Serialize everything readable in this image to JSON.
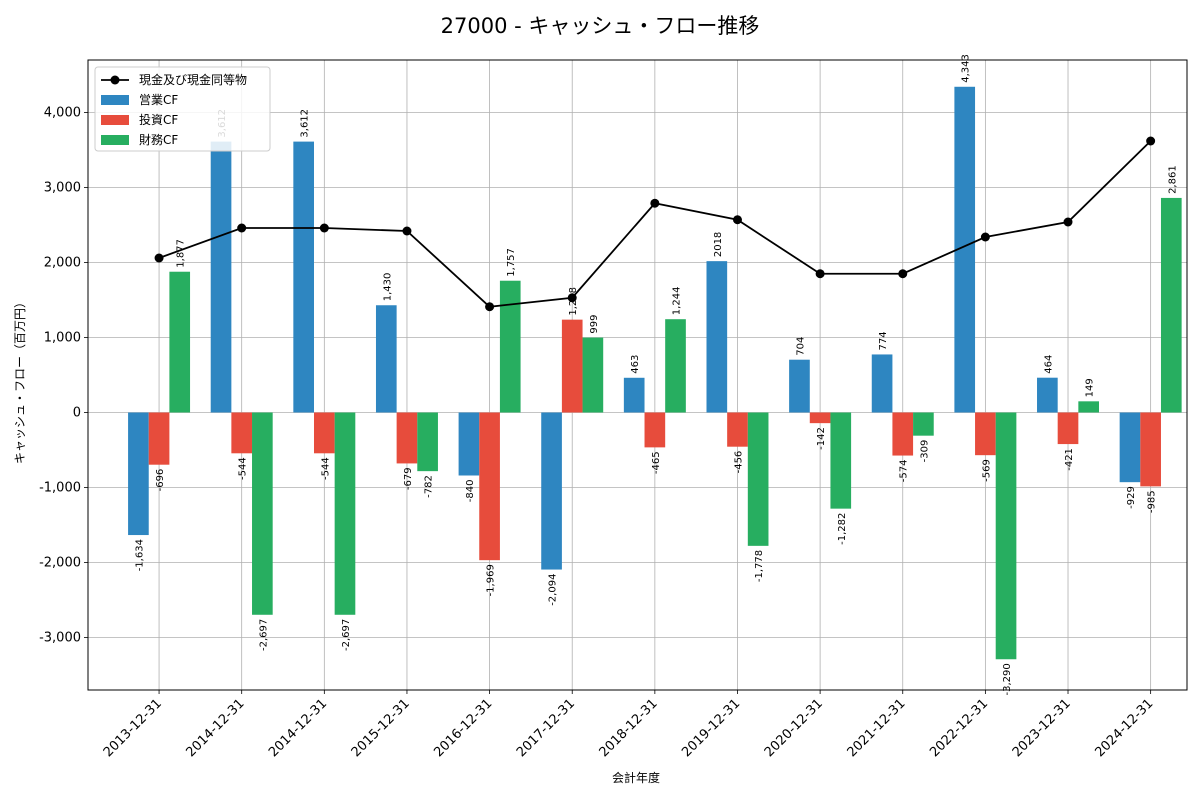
{
  "chart_data": {
    "type": "bar",
    "title": "27000 - キャッシュ・フロー推移",
    "xlabel": "会計年度",
    "ylabel": "キャッシュ・フロー（百万円）",
    "categories": [
      "2013-12-31",
      "2014-12-31",
      "2014-12-31",
      "2015-12-31",
      "2016-12-31",
      "2017-12-31",
      "2018-12-31",
      "2019-12-31",
      "2020-12-31",
      "2021-12-31",
      "2022-12-31",
      "2023-12-31",
      "2024-12-31"
    ],
    "ylim": [
      -3700,
      4700
    ],
    "yticks": [
      -3000,
      -2000,
      -1000,
      0,
      1000,
      2000,
      3000,
      4000
    ],
    "ytick_labels": [
      "-3,000",
      "-2,000",
      "-1,000",
      "0",
      "1,000",
      "2,000",
      "3,000",
      "4,000"
    ],
    "grid": true,
    "legend_position": "top-left",
    "series": [
      {
        "name": "営業CF",
        "type": "bar",
        "color": "#2e86c1",
        "values": [
          -1634,
          3612,
          3612,
          1430,
          -840,
          -2094,
          463,
          2018,
          704,
          774,
          4343,
          464,
          -929
        ],
        "labels": [
          "-1,634",
          "3,612",
          "3,612",
          "1,430",
          "-840",
          "-2,094",
          "463",
          "2018",
          "704",
          "774",
          "4,343",
          "464",
          "-929"
        ]
      },
      {
        "name": "投資CF",
        "type": "bar",
        "color": "#e74c3c",
        "values": [
          -696,
          -544,
          -544,
          -679,
          -1969,
          1238,
          -465,
          -456,
          -142,
          -574,
          -569,
          -421,
          -985
        ],
        "labels": [
          "-696",
          "-544",
          "-544",
          "-679",
          "-1,969",
          "1,238",
          "-465",
          "-456",
          "-142",
          "-574",
          "-569",
          "-421",
          "-985"
        ]
      },
      {
        "name": "財務CF",
        "type": "bar",
        "color": "#27ae60",
        "values": [
          1877,
          -2697,
          -2697,
          -782,
          1757,
          999,
          1244,
          -1778,
          -1282,
          -309,
          -3290,
          149,
          2861
        ],
        "labels": [
          "1,877",
          "-2,697",
          "-2,697",
          "-782",
          "1,757",
          "999",
          "1,244",
          "-1,778",
          "-1,282",
          "-309",
          "-3,290",
          "149",
          "2,861"
        ]
      },
      {
        "name": "現金及び現金同等物",
        "type": "line",
        "color": "#000000",
        "values": [
          2060,
          2460,
          2460,
          2420,
          1410,
          1530,
          2790,
          2570,
          1850,
          1850,
          2340,
          2540,
          3620
        ]
      }
    ]
  }
}
